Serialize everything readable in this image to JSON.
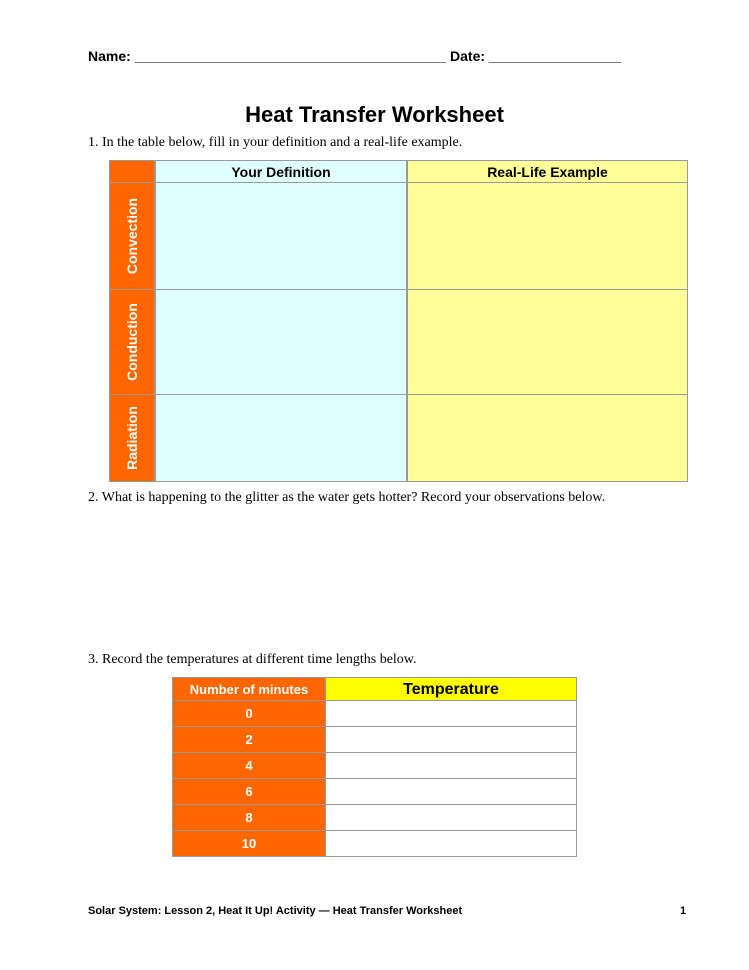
{
  "header": {
    "name_line": "Name: ________________________________________ Date: _________________"
  },
  "title": "Heat Transfer Worksheet",
  "questions": [
    "1.   In the table below, fill in your definition and a real-life example.",
    "2.   What is happening to the glitter as the water gets hotter? Record your observations below.",
    "3.   Record the temperatures at different time lengths below."
  ],
  "table1": {
    "columns": [
      "Your Definition",
      "Real-Life Example"
    ],
    "rows": [
      "Convection",
      "Conduction",
      "Radiation"
    ]
  },
  "table2": {
    "columns": [
      "Number of minutes",
      "Temperature"
    ],
    "rows": [
      "0",
      "2",
      "4",
      "6",
      "8",
      "10"
    ]
  },
  "footer": {
    "text": "Solar System: Lesson 2, Heat It Up! Activity — Heat Transfer Worksheet",
    "page": "1"
  },
  "colors": {
    "orange": "#ff6600",
    "cyan": "#dfffff",
    "light_yellow": "#ffff99",
    "yellow": "#ffff00"
  }
}
